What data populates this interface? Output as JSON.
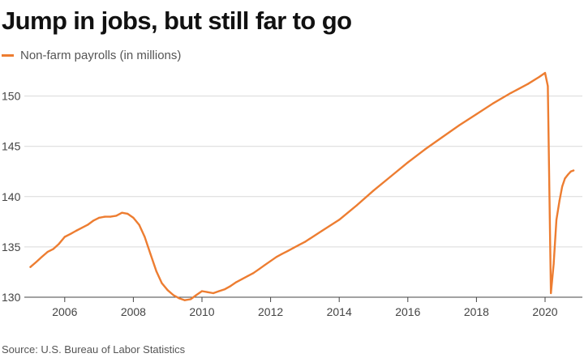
{
  "title": "Jump in jobs, but still far to go",
  "legend": {
    "label": "Non-farm payrolls (in millions)"
  },
  "source": "Source: U.S. Bureau of Labor Statistics",
  "colors": {
    "line": "#ed7d31",
    "grid": "#d9d9d9",
    "axis": "#444444",
    "text": "#444444"
  },
  "chart_data": {
    "type": "line",
    "title": "Jump in jobs, but still far to go",
    "xlabel": "",
    "ylabel": "",
    "xlim": [
      2005.0,
      2021.0
    ],
    "ylim": [
      130,
      153
    ],
    "x_ticks": [
      2006,
      2008,
      2010,
      2012,
      2014,
      2016,
      2018,
      2020
    ],
    "y_ticks": [
      130,
      135,
      140,
      145,
      150
    ],
    "grid": "horizontal",
    "legend_position": "top-left",
    "series": [
      {
        "name": "Non-farm payrolls (in millions)",
        "x": [
          2005.0,
          2005.17,
          2005.33,
          2005.5,
          2005.67,
          2005.83,
          2006.0,
          2006.17,
          2006.33,
          2006.5,
          2006.67,
          2006.83,
          2007.0,
          2007.17,
          2007.33,
          2007.5,
          2007.67,
          2007.83,
          2008.0,
          2008.17,
          2008.33,
          2008.5,
          2008.67,
          2008.83,
          2009.0,
          2009.17,
          2009.33,
          2009.5,
          2009.67,
          2009.83,
          2010.0,
          2010.17,
          2010.33,
          2010.5,
          2010.67,
          2010.83,
          2011.0,
          2011.17,
          2011.33,
          2011.5,
          2011.67,
          2011.83,
          2012.0,
          2012.17,
          2012.33,
          2012.5,
          2012.67,
          2012.83,
          2013.0,
          2013.5,
          2014.0,
          2014.5,
          2015.0,
          2015.5,
          2016.0,
          2016.5,
          2017.0,
          2017.5,
          2018.0,
          2018.5,
          2019.0,
          2019.5,
          2019.83,
          2020.0,
          2020.08,
          2020.17,
          2020.25,
          2020.33,
          2020.42,
          2020.5,
          2020.58,
          2020.67,
          2020.75,
          2020.83
        ],
        "values": [
          133.0,
          133.5,
          134.0,
          134.5,
          134.8,
          135.3,
          136.0,
          136.3,
          136.6,
          136.9,
          137.2,
          137.6,
          137.9,
          138.0,
          138.0,
          138.1,
          138.4,
          138.3,
          137.9,
          137.2,
          136.0,
          134.3,
          132.6,
          131.4,
          130.7,
          130.2,
          129.9,
          129.7,
          129.8,
          130.2,
          130.6,
          130.5,
          130.4,
          130.6,
          130.8,
          131.1,
          131.5,
          131.8,
          132.1,
          132.4,
          132.8,
          133.2,
          133.6,
          134.0,
          134.3,
          134.6,
          134.9,
          135.2,
          135.5,
          136.6,
          137.7,
          139.1,
          140.6,
          142.0,
          143.4,
          144.7,
          145.9,
          147.1,
          148.2,
          149.3,
          150.3,
          151.2,
          151.9,
          152.3,
          151.0,
          130.4,
          133.3,
          137.7,
          139.6,
          141.0,
          141.8,
          142.2,
          142.5,
          142.6
        ]
      }
    ]
  }
}
